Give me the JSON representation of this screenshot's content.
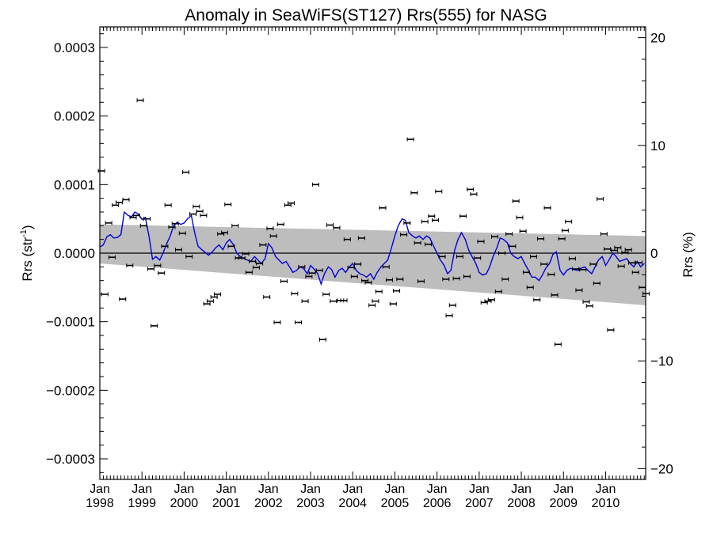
{
  "chart_data": {
    "type": "line",
    "title": "Anomaly in SeaWiFS(ST127) Rrs(555) for NASG",
    "ylabel_left": "Rrs (str",
    "ylabel_left_sup": "-1",
    "ylabel_left_close": ")",
    "ylabel_right": "Rrs (%)",
    "xlabel": "",
    "xlim": [
      1998.0,
      2010.95
    ],
    "ylim": [
      -0.00033,
      0.00033
    ],
    "ylim_right": [
      -21.0,
      21.0
    ],
    "yticks_left": [
      {
        "v": 0.0003,
        "label": "0.0003"
      },
      {
        "v": 0.0002,
        "label": "0.0002"
      },
      {
        "v": 0.0001,
        "label": "0.0001"
      },
      {
        "v": 0.0,
        "label": "0.0000"
      },
      {
        "v": -0.0001,
        "label": "−0.0001"
      },
      {
        "v": -0.0002,
        "label": "−0.0002"
      },
      {
        "v": -0.0003,
        "label": "−0.0003"
      }
    ],
    "yticks_right": [
      {
        "v": 20,
        "label": "20"
      },
      {
        "v": 10,
        "label": "10"
      },
      {
        "v": 0,
        "label": "0"
      },
      {
        "v": -10,
        "label": "−10"
      },
      {
        "v": -20,
        "label": "−20"
      }
    ],
    "xticks": [
      {
        "v": 1998.0,
        "month": "Jan",
        "year": "1998"
      },
      {
        "v": 1999.0,
        "month": "Jan",
        "year": "1999"
      },
      {
        "v": 2000.0,
        "month": "Jan",
        "year": "2000"
      },
      {
        "v": 2001.0,
        "month": "Jan",
        "year": "2001"
      },
      {
        "v": 2002.0,
        "month": "Jan",
        "year": "2002"
      },
      {
        "v": 2003.0,
        "month": "Jan",
        "year": "2003"
      },
      {
        "v": 2004.0,
        "month": "Jan",
        "year": "2004"
      },
      {
        "v": 2005.0,
        "month": "Jan",
        "year": "2005"
      },
      {
        "v": 2006.0,
        "month": "Jan",
        "year": "2006"
      },
      {
        "v": 2007.0,
        "month": "Jan",
        "year": "2007"
      },
      {
        "v": 2008.0,
        "month": "Jan",
        "year": "2008"
      },
      {
        "v": 2009.0,
        "month": "Jan",
        "year": "2009"
      },
      {
        "v": 2010.0,
        "month": "Jan",
        "year": "2010"
      }
    ],
    "band": {
      "x": [
        1998.0,
        2010.95
      ],
      "upper": [
        4.2e-05,
        2.5e-05
      ],
      "lower": [
        -1.5e-05,
        -7.6e-05
      ],
      "color": "#bdbdbd"
    },
    "zero_line": 0.0,
    "series": [
      {
        "kind": "points",
        "color": "#000000",
        "x": [
          1998.04,
          1998.12,
          1998.21,
          1998.29,
          1998.37,
          1998.46,
          1998.54,
          1998.62,
          1998.71,
          1998.79,
          1998.87,
          1998.96,
          1999.04,
          1999.12,
          1999.21,
          1999.29,
          1999.37,
          1999.46,
          1999.54,
          1999.62,
          1999.71,
          1999.79,
          1999.87,
          1999.96,
          2000.04,
          2000.12,
          2000.21,
          2000.29,
          2000.37,
          2000.46,
          2000.54,
          2000.62,
          2000.71,
          2000.79,
          2000.87,
          2000.96,
          2001.04,
          2001.12,
          2001.21,
          2001.29,
          2001.37,
          2001.46,
          2001.54,
          2001.62,
          2001.71,
          2001.79,
          2001.87,
          2001.96,
          2002.04,
          2002.12,
          2002.21,
          2002.29,
          2002.37,
          2002.46,
          2002.54,
          2002.62,
          2002.71,
          2002.79,
          2002.87,
          2002.96,
          2003.04,
          2003.12,
          2003.21,
          2003.29,
          2003.37,
          2003.46,
          2003.54,
          2003.62,
          2003.71,
          2003.79,
          2003.87,
          2003.96,
          2004.04,
          2004.12,
          2004.21,
          2004.29,
          2004.37,
          2004.46,
          2004.54,
          2004.62,
          2004.71,
          2004.79,
          2004.87,
          2004.96,
          2005.04,
          2005.12,
          2005.21,
          2005.29,
          2005.37,
          2005.46,
          2005.54,
          2005.62,
          2005.71,
          2005.79,
          2005.87,
          2005.96,
          2006.04,
          2006.12,
          2006.21,
          2006.29,
          2006.37,
          2006.46,
          2006.54,
          2006.62,
          2006.71,
          2006.79,
          2006.87,
          2006.96,
          2007.04,
          2007.12,
          2007.21,
          2007.29,
          2007.37,
          2007.46,
          2007.54,
          2007.62,
          2007.71,
          2007.79,
          2007.87,
          2007.96,
          2008.04,
          2008.12,
          2008.21,
          2008.29,
          2008.37,
          2008.46,
          2008.54,
          2008.62,
          2008.71,
          2008.79,
          2008.87,
          2008.96,
          2009.04,
          2009.12,
          2009.21,
          2009.29,
          2009.37,
          2009.46,
          2009.54,
          2009.62,
          2009.71,
          2009.79,
          2009.87,
          2009.96,
          2010.04,
          2010.12,
          2010.21,
          2010.29,
          2010.37,
          2010.46,
          2010.54,
          2010.62,
          2010.71,
          2010.79,
          2010.87,
          2010.96
        ],
        "y": [
          0.00012,
          -6e-05,
          4.4e-05,
          -6e-06,
          7e-05,
          7.4e-05,
          -6.7e-05,
          7.8e-05,
          -1.8e-05,
          5.2e-05,
          5.5e-05,
          0.000223,
          4e-05,
          5e-05,
          -2.3e-05,
          -0.000106,
          -1.8e-05,
          -2.9e-05,
          1e-05,
          7e-05,
          3.8e-05,
          4.3e-05,
          5e-06,
          2.9e-05,
          0.000118,
          -5e-06,
          5.7e-05,
          6.8e-05,
          6.1e-05,
          5.5e-05,
          -7.4e-05,
          -7e-05,
          -6.4e-05,
          -6e-05,
          2.8e-05,
          3e-05,
          7.1e-05,
          1e-05,
          4e-05,
          -7e-06,
          -7e-06,
          -1e-06,
          -2.8e-05,
          -1.2e-05,
          -2.1e-05,
          -1.5e-05,
          1.2e-05,
          -6.4e-05,
          3.6e-05,
          2.5e-05,
          -0.000101,
          4.2e-05,
          -4.1e-05,
          7e-05,
          7.3e-05,
          -5.9e-05,
          -0.000101,
          -2e-05,
          -7e-05,
          -3.4e-05,
          -2.9e-05,
          0.0001,
          -2.5e-05,
          -0.000126,
          -6e-05,
          4.1e-05,
          -7e-05,
          3.7e-05,
          -6.9e-05,
          -6.9e-05,
          2e-05,
          -2.1e-05,
          -3.4e-05,
          -1.6e-05,
          2.2e-05,
          -4e-05,
          -4.3e-05,
          -7.6e-05,
          -7e-05,
          -5.6e-05,
          6.6e-05,
          -2e-05,
          -3.9e-05,
          -7.4e-05,
          -5.5e-05,
          -3.8e-05,
          2.7e-05,
          4.4e-05,
          0.000166,
          8.8e-05,
          1.5e-05,
          -4.1e-05,
          4.6e-05,
          1.3e-05,
          5.4e-05,
          4.8e-05,
          9e-05,
          -5e-06,
          -3.8e-05,
          -9.1e-05,
          -7.6e-05,
          -3.7e-05,
          -5e-06,
          5.4e-05,
          -3.4e-05,
          9.3e-05,
          8.6e-05,
          -7e-06,
          1.7e-05,
          -7.2e-05,
          -7e-05,
          -6.8e-05,
          2.4e-05,
          -5.6e-05,
          0.0,
          -3.8e-05,
          2.8e-05,
          1e-05,
          7.6e-05,
          5.2e-05,
          3.2e-05,
          -2.8e-05,
          -5e-05,
          -5e-06,
          -6.8e-05,
          2.1e-05,
          -1.6e-05,
          6.6e-05,
          -3.1e-05,
          -6.1e-05,
          -0.000133,
          2.1e-05,
          3.3e-05,
          4.6e-05,
          -8e-06,
          -2.3e-05,
          -5.4e-05,
          -2.4e-05,
          -7.1e-05,
          -7.7e-05,
          -1.6e-05,
          -4.4e-05,
          7.9e-05,
          2.8e-05,
          6e-06,
          -0.000112,
          4e-06,
          8e-06,
          -1.9e-05,
          1e-06,
          5e-06,
          -1.4e-05,
          -2.8e-05,
          -1.4e-05,
          -5e-05,
          -5.9e-05
        ]
      },
      {
        "kind": "line",
        "color": "#0000dd",
        "x": [
          1998.0,
          1998.08,
          1998.17,
          1998.25,
          1998.33,
          1998.42,
          1998.5,
          1998.58,
          1998.67,
          1998.75,
          1998.83,
          1998.92,
          1999.0,
          1999.08,
          1999.17,
          1999.25,
          1999.33,
          1999.42,
          1999.5,
          1999.58,
          1999.67,
          1999.75,
          1999.83,
          1999.92,
          2000.0,
          2000.08,
          2000.17,
          2000.25,
          2000.33,
          2000.42,
          2000.5,
          2000.58,
          2000.67,
          2000.75,
          2000.83,
          2000.92,
          2001.0,
          2001.08,
          2001.17,
          2001.25,
          2001.33,
          2001.42,
          2001.5,
          2001.58,
          2001.67,
          2001.75,
          2001.83,
          2001.92,
          2002.0,
          2002.08,
          2002.17,
          2002.25,
          2002.33,
          2002.42,
          2002.5,
          2002.58,
          2002.67,
          2002.75,
          2002.83,
          2002.92,
          2003.0,
          2003.08,
          2003.17,
          2003.25,
          2003.33,
          2003.42,
          2003.5,
          2003.58,
          2003.67,
          2003.75,
          2003.83,
          2003.92,
          2004.0,
          2004.08,
          2004.17,
          2004.25,
          2004.33,
          2004.42,
          2004.5,
          2004.58,
          2004.67,
          2004.75,
          2004.83,
          2004.92,
          2005.0,
          2005.08,
          2005.17,
          2005.25,
          2005.33,
          2005.42,
          2005.5,
          2005.58,
          2005.67,
          2005.75,
          2005.83,
          2005.92,
          2006.0,
          2006.08,
          2006.17,
          2006.25,
          2006.33,
          2006.42,
          2006.5,
          2006.58,
          2006.67,
          2006.75,
          2006.83,
          2006.92,
          2007.0,
          2007.08,
          2007.17,
          2007.25,
          2007.33,
          2007.42,
          2007.5,
          2007.58,
          2007.67,
          2007.75,
          2007.83,
          2007.92,
          2008.0,
          2008.08,
          2008.17,
          2008.25,
          2008.33,
          2008.42,
          2008.5,
          2008.58,
          2008.67,
          2008.75,
          2008.83,
          2008.92,
          2009.0,
          2009.08,
          2009.17,
          2009.25,
          2009.33,
          2009.42,
          2009.5,
          2009.58,
          2009.67,
          2009.75,
          2009.83,
          2009.92,
          2010.0,
          2010.08,
          2010.17,
          2010.25,
          2010.33,
          2010.42,
          2010.5,
          2010.58,
          2010.67,
          2010.75,
          2010.83,
          2010.92
        ],
        "y": [
          9e-06,
          1.2e-05,
          2.4e-05,
          2.7e-05,
          2.2e-05,
          2.3e-05,
          2.7e-05,
          6e-05,
          5.5e-05,
          5.3e-05,
          6e-05,
          5.7e-05,
          4.9e-05,
          5.2e-05,
          2.4e-05,
          -9e-06,
          -5e-06,
          -1e-05,
          0.0,
          1.3e-05,
          2.5e-05,
          4e-05,
          4.5e-05,
          4.2e-05,
          4.4e-05,
          5e-05,
          5.5e-05,
          3e-05,
          1e-05,
          5e-06,
          1e-06,
          -3e-06,
          2e-06,
          8e-06,
          1.2e-05,
          5e-06,
          1.5e-05,
          2e-05,
          1.2e-05,
          0.0,
          -5e-06,
          -8e-06,
          -1e-05,
          -1.2e-05,
          -5e-06,
          -1e-05,
          -1.5e-05,
          -8e-06,
          1.4e-05,
          8e-06,
          -5e-06,
          -1e-05,
          -1.5e-05,
          -1.2e-05,
          -2e-05,
          -2.8e-05,
          -2.5e-05,
          -2e-05,
          -2.2e-05,
          -3e-05,
          -1.8e-05,
          -2.3e-05,
          -3e-05,
          -4.5e-05,
          -3e-05,
          -2e-05,
          -2.4e-05,
          -3.5e-05,
          -2.5e-05,
          -2.2e-05,
          -2.8e-05,
          -2e-05,
          -1.5e-05,
          -2.5e-05,
          -3e-05,
          -3.2e-05,
          -3.5e-05,
          -3e-05,
          -3.8e-05,
          -2.8e-05,
          -2e-05,
          -1.5e-05,
          -1e-05,
          8e-06,
          2.5e-05,
          4e-05,
          5e-05,
          4.8e-05,
          3e-05,
          2.5e-05,
          2.2e-05,
          2.5e-05,
          2e-05,
          2.5e-05,
          2.2e-05,
          1e-05,
          0.0,
          -1e-05,
          -1.8e-05,
          -3e-05,
          -2.5e-05,
          5e-06,
          2e-05,
          3e-05,
          2e-05,
          5e-06,
          -5e-06,
          -1.5e-05,
          -2.8e-05,
          -3.2e-05,
          -3e-05,
          -2e-05,
          -5e-06,
          8e-06,
          2.2e-05,
          2e-05,
          1.5e-05,
          0.0,
          -5e-06,
          -8e-06,
          -5e-06,
          -1.5e-05,
          -2.5e-05,
          -3.5e-05,
          -3.5e-05,
          -4e-05,
          -3.2e-05,
          -2.2e-05,
          -1.5e-05,
          -2e-06,
          2e-06,
          -2.5e-05,
          -3.2e-05,
          -2.5e-05,
          -2.2e-05,
          -2.4e-05,
          -2.5e-05,
          -2.2e-05,
          -2e-05,
          -2.5e-05,
          -3e-05,
          -2e-05,
          -1e-05,
          -5e-06,
          -1.8e-05,
          -1e-05,
          0.0,
          -5e-06,
          -1.2e-05,
          -1e-05,
          -8e-06,
          -1.5e-05,
          -2e-05,
          -1.2e-05,
          -2e-05,
          -1.5e-05
        ]
      }
    ]
  }
}
